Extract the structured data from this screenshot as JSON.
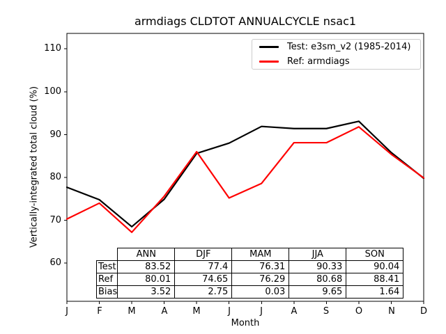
{
  "title": "armdiags CLDTOT ANNUALCYCLE nsac1",
  "axes": {
    "xlabel": "Month",
    "ylabel": "Vertically-integrated total cloud (%)",
    "yticks": [
      "110",
      "100",
      "90",
      "80",
      "70",
      "60"
    ],
    "xticks": [
      "J",
      "F",
      "M",
      "A",
      "M",
      "J",
      "J",
      "A",
      "S",
      "O",
      "N",
      "D"
    ]
  },
  "legend": {
    "items": [
      {
        "label": "Test: e3sm_v2 (1985-2014)",
        "color": "#000000"
      },
      {
        "label": "Ref: armdiags",
        "color": "#ff0000"
      }
    ]
  },
  "table": {
    "col_headers": [
      "ANN",
      "DJF",
      "MAM",
      "JJA",
      "SON"
    ],
    "rows": [
      {
        "label": "Test",
        "values": [
          "83.52",
          "77.4",
          "76.31",
          "90.33",
          "90.04"
        ]
      },
      {
        "label": "Ref",
        "values": [
          "80.01",
          "74.65",
          "76.29",
          "80.68",
          "88.41"
        ]
      },
      {
        "label": "Bias",
        "values": [
          "3.52",
          "2.75",
          "0.03",
          "9.65",
          "1.64"
        ]
      }
    ]
  },
  "chart_data": {
    "type": "line",
    "title": "armdiags CLDTOT ANNUALCYCLE nsac1",
    "xlabel": "Month",
    "ylabel": "Vertically-integrated total cloud (%)",
    "x": [
      "J",
      "F",
      "M",
      "A",
      "M",
      "J",
      "J",
      "A",
      "S",
      "O",
      "N",
      "D"
    ],
    "ylim": [
      51.1,
      113.6
    ],
    "yticks": [
      60,
      70,
      80,
      90,
      100,
      110
    ],
    "grid": false,
    "legend_position": "upper right",
    "series": [
      {
        "name": "Test: e3sm_v2 (1985-2014)",
        "color": "#000000",
        "values": [
          77.7,
          74.8,
          68.5,
          74.9,
          85.6,
          88.0,
          91.9,
          91.4,
          91.4,
          93.1,
          85.8,
          79.8
        ]
      },
      {
        "name": "Ref: armdiags",
        "color": "#ff0000",
        "values": [
          70.3,
          74.0,
          67.2,
          75.6,
          86.0,
          75.2,
          78.6,
          88.1,
          88.1,
          91.8,
          85.4,
          79.9
        ]
      }
    ],
    "summary_table": {
      "columns": [
        "ANN",
        "DJF",
        "MAM",
        "JJA",
        "SON"
      ],
      "Test": [
        83.52,
        77.4,
        76.31,
        90.33,
        90.04
      ],
      "Ref": [
        80.01,
        74.65,
        76.29,
        80.68,
        88.41
      ],
      "Bias": [
        3.52,
        2.75,
        0.03,
        9.65,
        1.64
      ]
    }
  }
}
